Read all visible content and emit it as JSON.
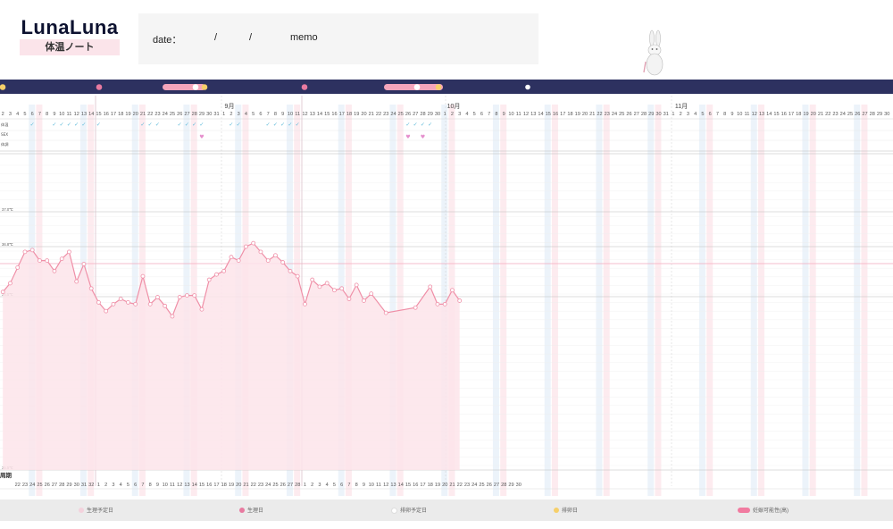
{
  "header": {
    "logo_text": "LunaLuna",
    "logo_sub": "体温ノート",
    "date_label": "date：",
    "date_sep1": "/",
    "date_sep2": "/",
    "memo_label": "memo"
  },
  "rows": {
    "row1": "体温",
    "row2": "SEX",
    "row3": "体調"
  },
  "bottom_row_label": "周期",
  "months": [
    "9月",
    "10月",
    "11月"
  ],
  "colors": {
    "navy": "#2d3160",
    "pink_band": "#f8c6d1",
    "blue_band": "#dde9f6",
    "line": "#ef8fa7",
    "fill": "#fde4ea",
    "check": "#5bb9d9",
    "heart": "#e58fcd"
  },
  "chart_data": {
    "type": "area",
    "title": "",
    "ylabel": "",
    "y_tick_labels": [
      "37.0℃",
      "36.8℃",
      "36.5℃",
      "35.5℃"
    ],
    "ylim": [
      35.5,
      37.5
    ],
    "date_labels": [
      "2",
      "3",
      "4",
      "5",
      "6",
      "7",
      "8",
      "9",
      "10",
      "11",
      "12",
      "13",
      "14",
      "15",
      "16",
      "17",
      "18",
      "19",
      "20",
      "21",
      "22",
      "23",
      "24",
      "25",
      "26",
      "27",
      "28",
      "29",
      "30",
      "31",
      "1",
      "2",
      "3",
      "4",
      "5",
      "6",
      "7",
      "8",
      "9",
      "10",
      "11",
      "12",
      "13",
      "14",
      "15",
      "16",
      "17",
      "18",
      "19",
      "20",
      "21",
      "22",
      "23",
      "24",
      "25",
      "26",
      "27",
      "28",
      "29",
      "30",
      "1",
      "2",
      "3",
      "4",
      "5",
      "6",
      "7",
      "8",
      "9",
      "10",
      "11",
      "12",
      "13",
      "14",
      "15",
      "16",
      "17",
      "18",
      "19",
      "20",
      "21",
      "22",
      "23",
      "24",
      "25",
      "26",
      "27",
      "28",
      "29",
      "30",
      "31",
      "1",
      "2",
      "3",
      "4",
      "5",
      "6",
      "7",
      "8",
      "9",
      "10",
      "11",
      "12",
      "13",
      "14",
      "15",
      "16",
      "17",
      "18",
      "19",
      "20",
      "21",
      "22",
      "23",
      "24",
      "25",
      "26",
      "27",
      "28",
      "29",
      "30"
    ],
    "cycle_labels": [
      "22",
      "23",
      "24",
      "25",
      "26",
      "27",
      "28",
      "29",
      "30",
      "31",
      "32",
      "1",
      "2",
      "3",
      "4",
      "5",
      "6",
      "7",
      "8",
      "9",
      "10",
      "11",
      "12",
      "13",
      "14",
      "15",
      "16",
      "17",
      "18",
      "19",
      "20",
      "21",
      "22",
      "23",
      "24",
      "25",
      "26",
      "27",
      "28",
      "1",
      "2",
      "3",
      "4",
      "5",
      "6",
      "7",
      "8",
      "9",
      "10",
      "11",
      "12",
      "13",
      "14",
      "15",
      "16",
      "17",
      "18",
      "19",
      "20",
      "21",
      "22",
      "23",
      "24",
      "25",
      "26",
      "27",
      "28",
      "29",
      "30"
    ],
    "series": [
      {
        "values": [
          36.54,
          36.59,
          36.68,
          36.77,
          36.78,
          36.72,
          36.72,
          36.66,
          36.73,
          36.77,
          36.6,
          36.7,
          36.56,
          36.48,
          36.43,
          36.47,
          36.5,
          36.48,
          36.47,
          36.63,
          36.47,
          36.51,
          36.46,
          36.4,
          36.51,
          36.52,
          36.52,
          36.44,
          36.61,
          36.64,
          36.66,
          36.74,
          36.72,
          36.8,
          36.82,
          36.77,
          36.72,
          36.75,
          36.71,
          36.66,
          36.63,
          36.47,
          36.61,
          36.57,
          36.59,
          36.55,
          36.56,
          36.5,
          36.58,
          36.49,
          36.53,
          null,
          36.42,
          null,
          null,
          null,
          36.45,
          null,
          36.57,
          36.47,
          36.47,
          36.55,
          36.49
        ]
      }
    ],
    "checks": [
      4,
      7,
      8,
      9,
      10,
      11,
      13,
      19,
      20,
      21,
      24,
      25,
      26,
      27,
      31,
      32,
      36,
      37,
      38,
      39,
      40,
      55,
      56,
      57,
      58
    ],
    "hearts": [
      27,
      55,
      57
    ],
    "sex_label": "SEX",
    "grid": true
  },
  "legend": [
    {
      "label": "生理予定日"
    },
    {
      "label": "生理日"
    },
    {
      "label": "排卵予定日"
    },
    {
      "label": "排卵日"
    },
    {
      "label": "妊娠可能性(高)"
    }
  ]
}
